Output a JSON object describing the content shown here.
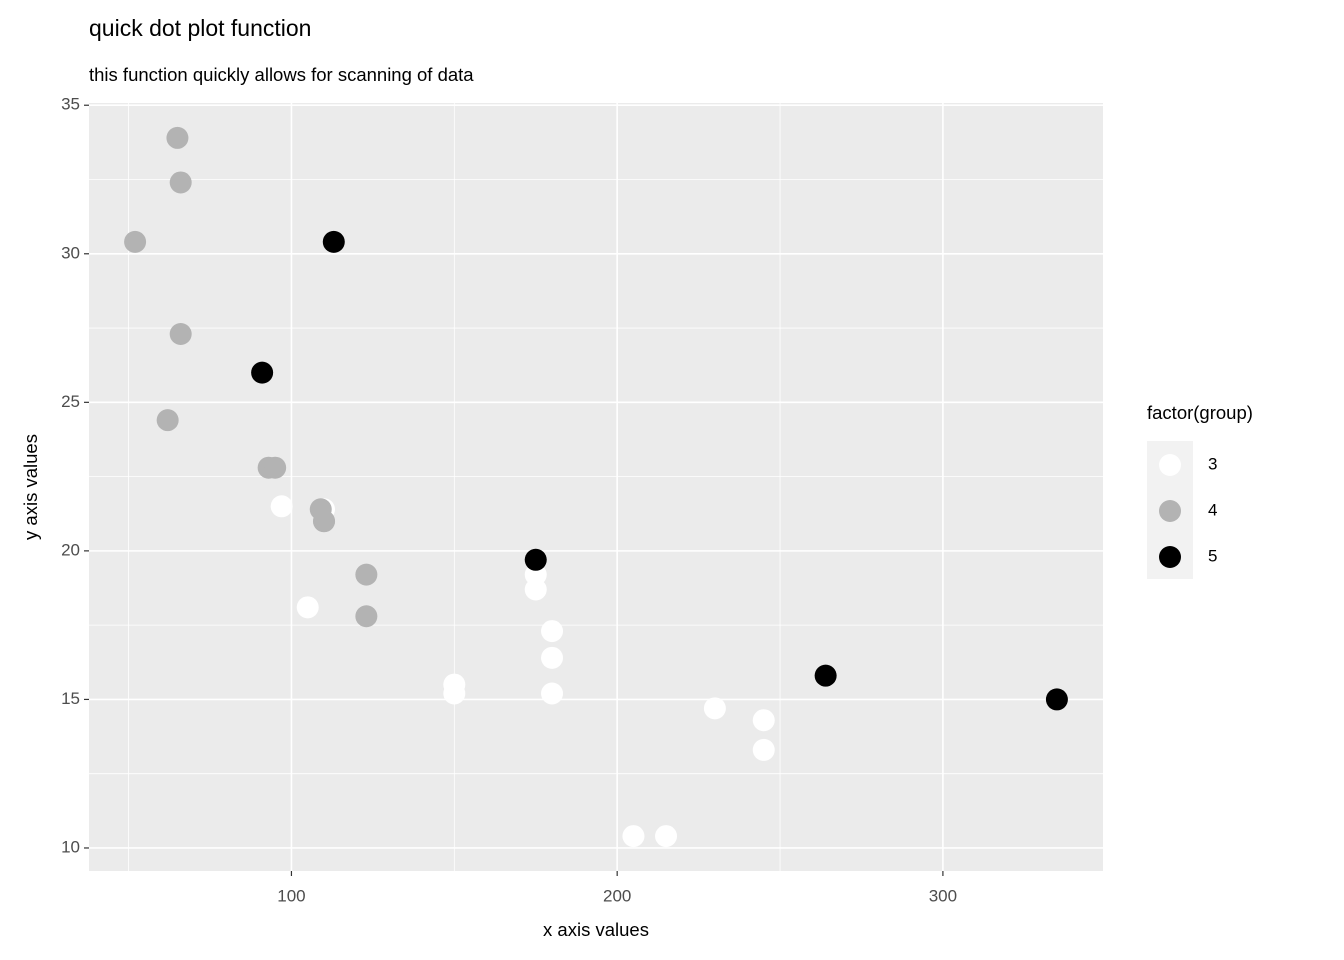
{
  "chart_data": {
    "type": "scatter",
    "title": "quick dot plot function",
    "subtitle": "this function quickly allows for scanning of data",
    "x_label": "x axis values",
    "y_label": "y axis values",
    "legend_title": "factor(group)",
    "legend_position": "right",
    "grid": true,
    "xlim": [
      37.85,
      349.15
    ],
    "xticks": [
      100,
      200,
      300
    ],
    "ylim": [
      9.225,
      35.075
    ],
    "yticks": [
      10,
      15,
      20,
      25,
      30,
      35
    ],
    "series": [
      {
        "name": "3",
        "color": "#ffffff",
        "x": [
          110,
          175,
          105,
          245,
          180,
          180,
          180,
          205,
          215,
          230,
          97,
          150,
          150,
          245,
          175
        ],
        "values": [
          21.4,
          18.7,
          18.1,
          14.3,
          16.4,
          17.3,
          15.2,
          10.4,
          10.4,
          14.7,
          21.5,
          15.5,
          15.2,
          13.3,
          19.2
        ]
      },
      {
        "name": "4",
        "color": "#b3b3b3",
        "x": [
          110,
          110,
          93,
          62,
          95,
          123,
          123,
          66,
          52,
          65,
          66,
          109
        ],
        "values": [
          21.0,
          21.0,
          22.8,
          24.4,
          22.8,
          19.2,
          17.8,
          32.4,
          30.4,
          33.9,
          27.3,
          21.4
        ]
      },
      {
        "name": "5",
        "color": "#000000",
        "x": [
          91,
          113,
          264,
          175,
          335
        ],
        "values": [
          26.0,
          30.4,
          15.8,
          19.7,
          15.0
        ]
      }
    ]
  }
}
